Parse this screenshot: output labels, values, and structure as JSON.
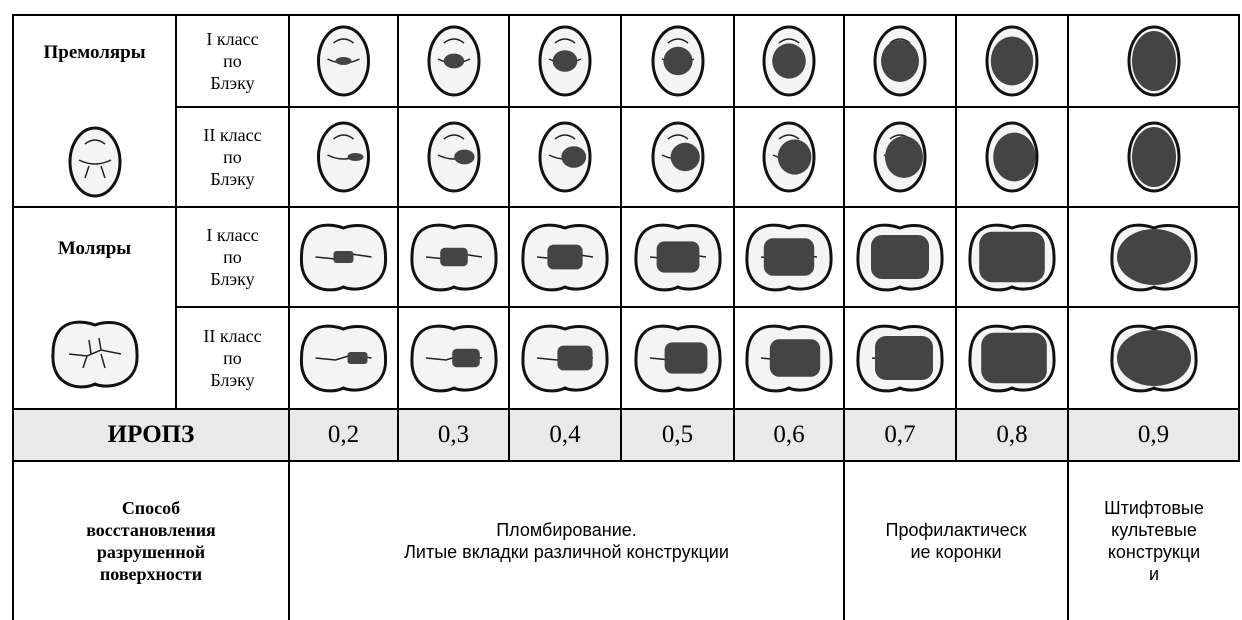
{
  "rows": [
    {
      "group": "Премоляры",
      "classes": [
        [
          "I класс",
          "по",
          "Блэку"
        ],
        [
          "II класс",
          "по",
          "Блэку"
        ]
      ]
    },
    {
      "group": "Моляры",
      "classes": [
        [
          "I класс",
          "по",
          "Блэку"
        ],
        [
          "II класс",
          "по",
          "Блэку"
        ]
      ]
    }
  ],
  "index_row": {
    "label": "ИРОПЗ",
    "values": [
      "0,2",
      "0,3",
      "0,4",
      "0,5",
      "0,6",
      "0,7",
      "0,8",
      "0,9"
    ]
  },
  "method_row": {
    "label": [
      "Способ",
      "восстановления",
      "разрушенной",
      "поверхности"
    ],
    "cells": [
      [
        "Пломбирование.",
        "Литые вкладки различной конструкции"
      ],
      [
        "Профилактическ",
        "ие коронки"
      ],
      [
        "Штифтовые",
        "культевые",
        "конструкци",
        "и"
      ]
    ]
  }
}
